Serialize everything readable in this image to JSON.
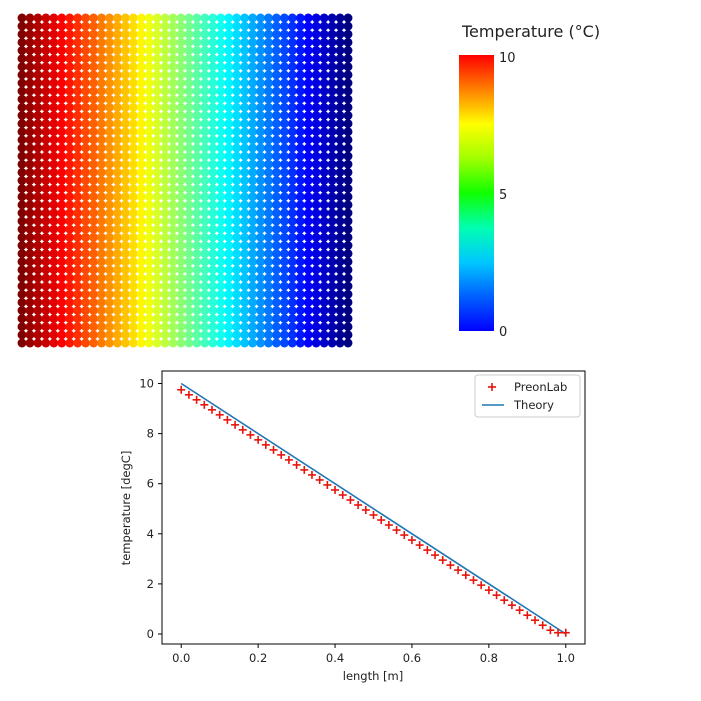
{
  "colorbar": {
    "title": "Temperature (°C)",
    "ticks": [
      10,
      5,
      0
    ],
    "min": 0,
    "max": 10,
    "colormap": "jet"
  },
  "particle_field": {
    "columns": 42,
    "rows": 41,
    "value_left": 10,
    "value_right": 0
  },
  "chart_data": {
    "type": "scatter",
    "title": "",
    "xlabel": "length [m]",
    "ylabel": "temperature [degC]",
    "xlim": [
      -0.05,
      1.05
    ],
    "ylim": [
      -0.4,
      10.5
    ],
    "xticks": [
      "0.0",
      "0.2",
      "0.4",
      "0.6",
      "0.8",
      "1.0"
    ],
    "yticks": [
      "0",
      "2",
      "4",
      "6",
      "8",
      "10"
    ],
    "legend_position": "top-right",
    "series": [
      {
        "name": "PreonLab",
        "kind": "scatter",
        "marker": "+",
        "color": "#e8140c",
        "x": [
          0.0,
          0.02,
          0.04,
          0.06,
          0.08,
          0.1,
          0.12,
          0.14,
          0.16,
          0.18,
          0.2,
          0.22,
          0.24,
          0.26,
          0.28,
          0.3,
          0.32,
          0.34,
          0.36,
          0.38,
          0.4,
          0.42,
          0.44,
          0.46,
          0.48,
          0.5,
          0.52,
          0.54,
          0.56,
          0.58,
          0.6,
          0.62,
          0.64,
          0.66,
          0.68,
          0.7,
          0.72,
          0.74,
          0.76,
          0.78,
          0.8,
          0.82,
          0.84,
          0.86,
          0.88,
          0.9,
          0.92,
          0.94,
          0.96,
          0.98,
          1.0
        ],
        "y": [
          9.75,
          9.55,
          9.35,
          9.15,
          8.95,
          8.75,
          8.55,
          8.35,
          8.15,
          7.95,
          7.75,
          7.55,
          7.35,
          7.15,
          6.95,
          6.75,
          6.55,
          6.35,
          6.15,
          5.95,
          5.75,
          5.55,
          5.35,
          5.15,
          4.95,
          4.75,
          4.55,
          4.35,
          4.15,
          3.95,
          3.75,
          3.55,
          3.35,
          3.15,
          2.95,
          2.75,
          2.55,
          2.35,
          2.15,
          1.95,
          1.75,
          1.55,
          1.35,
          1.15,
          0.95,
          0.75,
          0.55,
          0.35,
          0.15,
          0.05,
          0.05
        ]
      },
      {
        "name": "Theory",
        "kind": "line",
        "color": "#1f77b4",
        "x": [
          0.0,
          1.0
        ],
        "y": [
          10.0,
          0.0
        ]
      }
    ]
  }
}
